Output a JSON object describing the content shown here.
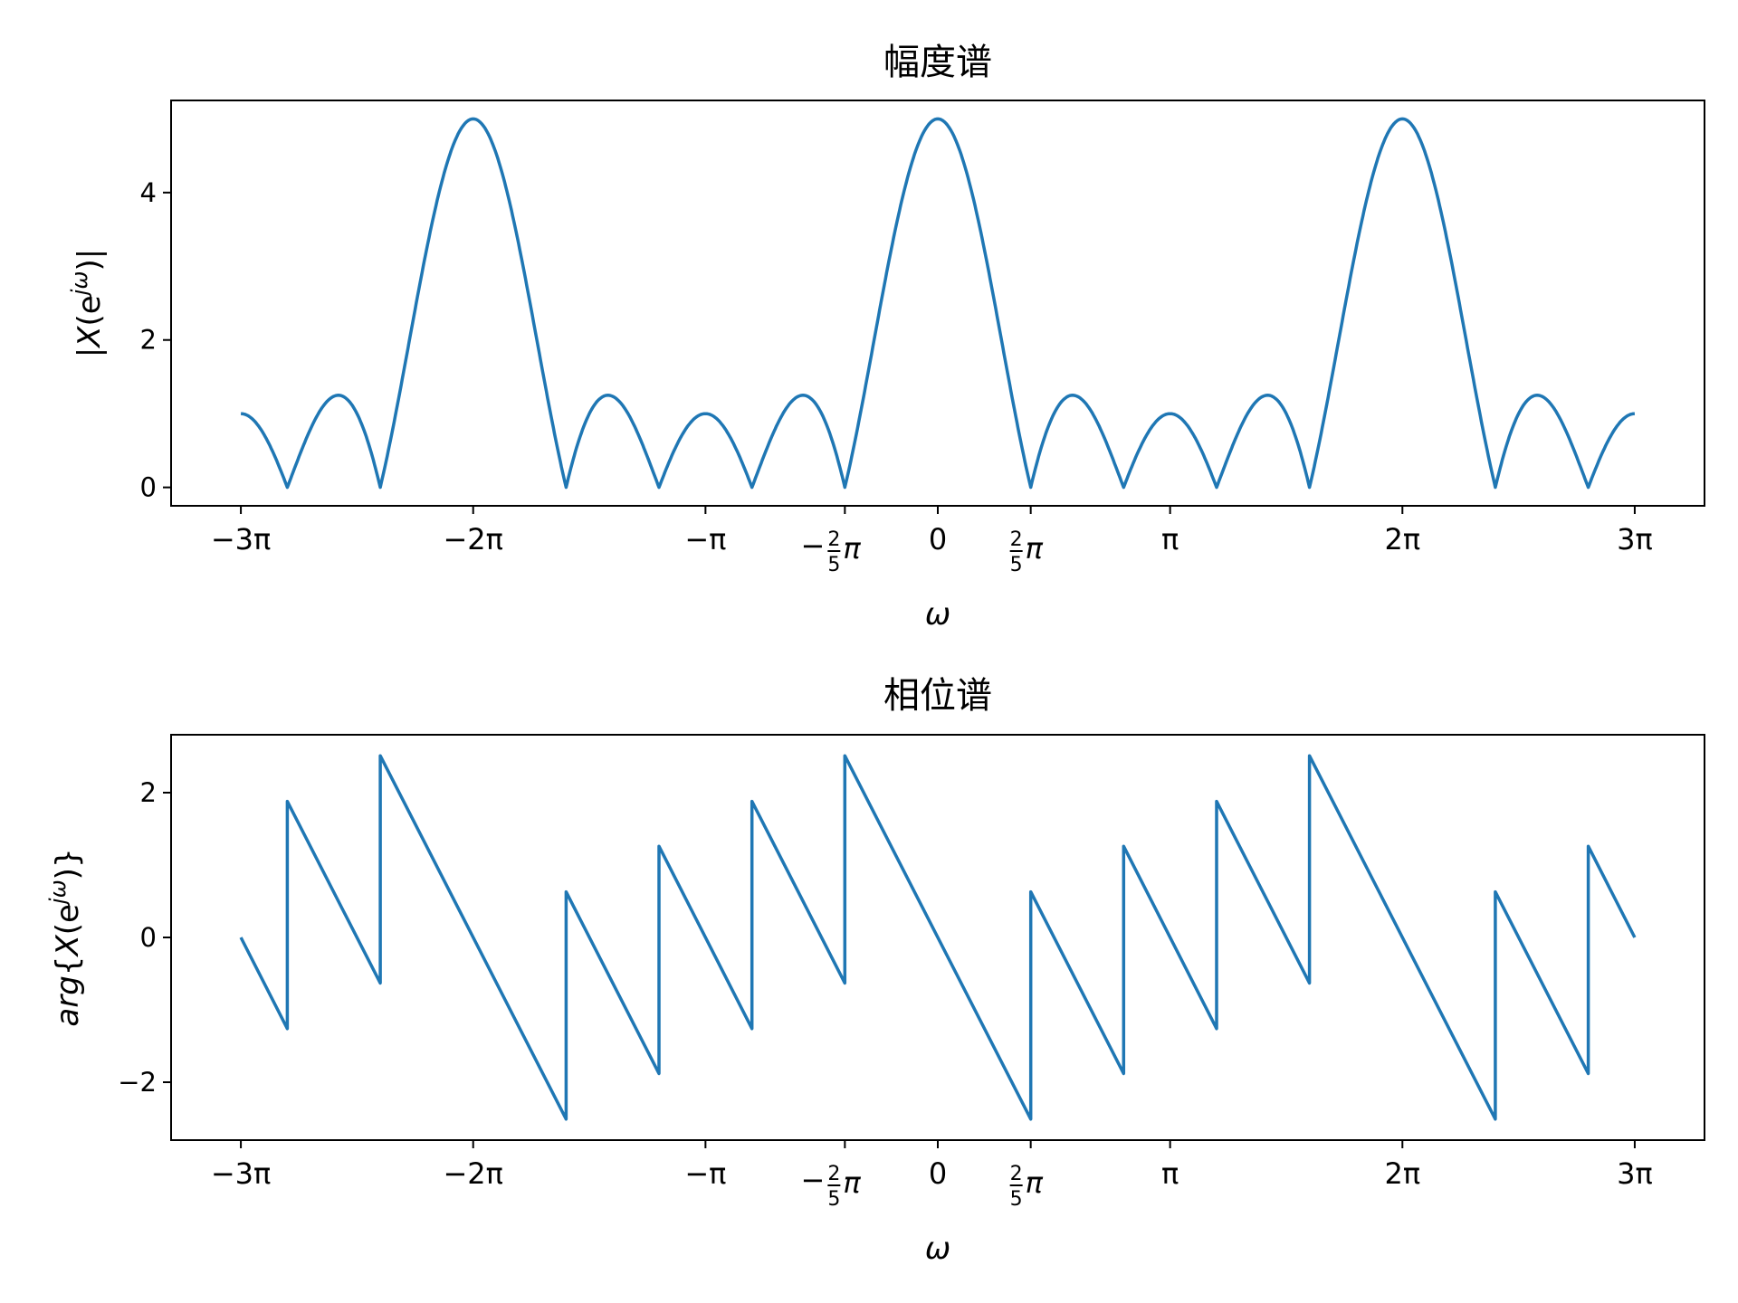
{
  "chart_data": [
    {
      "type": "line",
      "title": "幅度谱",
      "xlabel": "ω",
      "ylabel": "|X(e^{jω})|",
      "xlim": [
        -3,
        3
      ],
      "x_unit": "π",
      "ylim": [
        -0.25,
        5.25
      ],
      "yticks": [
        0,
        2,
        4
      ],
      "xticks": [
        "−3π",
        "−2π",
        "−π",
        "−2/5π",
        "0",
        "2/5π",
        "π",
        "2π",
        "3π"
      ],
      "grid": false,
      "series": [
        {
          "color": "#1f77b4",
          "x": [
            -3.0,
            -2.8,
            -2.6,
            -2.4,
            -2.0,
            -1.6,
            -1.4,
            -1.2,
            -1.0,
            -0.8,
            -0.6,
            -0.4,
            0.0,
            0.4,
            0.6,
            0.8,
            1.0,
            1.2,
            1.4,
            1.6,
            2.0,
            2.4,
            2.6,
            2.8,
            3.0
          ],
          "y": [
            1.0,
            0.0,
            1.24,
            0.0,
            5.0,
            0.0,
            1.24,
            0.0,
            1.0,
            0.0,
            1.24,
            0.0,
            5.0,
            0.0,
            1.24,
            0.0,
            1.0,
            0.0,
            1.24,
            0.0,
            5.0,
            0.0,
            1.24,
            0.0,
            1.0
          ]
        }
      ]
    },
    {
      "type": "line",
      "title": "相位谱",
      "xlabel": "ω",
      "ylabel": "arg{X(e^{jω})}",
      "xlim": [
        -3,
        3
      ],
      "x_unit": "π",
      "ylim": [
        -2.8,
        2.8
      ],
      "yticks": [
        -2,
        0,
        2
      ],
      "xticks": [
        "−3π",
        "−2π",
        "−π",
        "−2/5π",
        "0",
        "2/5π",
        "π",
        "2π",
        "3π"
      ],
      "grid": false,
      "series": [
        {
          "color": "#1f77b4",
          "x": [
            -3.0,
            -2.8,
            -2.8,
            -2.4,
            -2.4,
            -1.6,
            -1.6,
            -1.2,
            -1.2,
            -0.8,
            -0.8,
            -0.4,
            -0.4,
            0.4,
            0.4,
            0.8,
            0.8,
            1.2,
            1.2,
            1.6,
            1.6,
            2.4,
            2.4,
            2.8,
            2.8,
            3.0
          ],
          "y": [
            0.0,
            -1.26,
            1.88,
            -0.63,
            2.51,
            -2.51,
            0.63,
            -1.88,
            1.26,
            -1.26,
            1.88,
            -0.63,
            2.51,
            -2.51,
            0.63,
            -1.88,
            1.26,
            -1.26,
            1.88,
            -0.63,
            2.51,
            -2.51,
            0.63,
            -1.88,
            1.26,
            0.0
          ]
        }
      ]
    }
  ]
}
